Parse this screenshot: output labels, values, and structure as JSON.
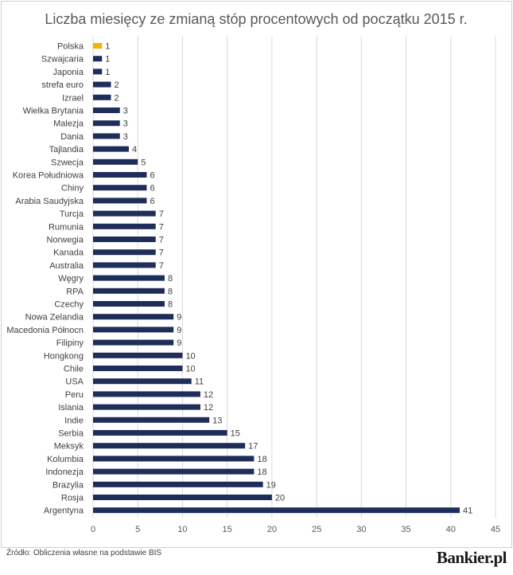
{
  "source_text": "Źródło: Obliczenia własne na podstawie BIS",
  "logo_text": "Bankier.pl",
  "colors": {
    "bar": "#1f2d5a",
    "highlight": "#f2b400",
    "grid": "#d9d9d9",
    "frame": "#d0d0d0"
  },
  "chart_data": {
    "type": "bar",
    "orientation": "horizontal",
    "title": "Liczba miesięcy ze zmianą stóp procentowych od początku 2015 r.",
    "xlabel": "",
    "ylabel": "",
    "xlim": [
      0,
      45
    ],
    "xticks": [
      0,
      5,
      10,
      15,
      20,
      25,
      30,
      35,
      40,
      45
    ],
    "grid": "vertical",
    "highlighted_category": "Polska",
    "categories": [
      "Polska",
      "Szwajcaria",
      "Japonia",
      "strefa euro",
      "Izrael",
      "Wielka Brytania",
      "Malezja",
      "Dania",
      "Tajlandia",
      "Szwecja",
      "Korea Południowa",
      "Chiny",
      "Arabia Saudyjska",
      "Turcja",
      "Rumunia",
      "Norwegia",
      "Kanada",
      "Australia",
      "Węgry",
      "RPA",
      "Czechy",
      "Nowa Zelandia",
      "Macedonia Północn",
      "Filipiny",
      "Hongkong",
      "Chile",
      "USA",
      "Peru",
      "Islania",
      "Indie",
      "Serbia",
      "Meksyk",
      "Kolumbia",
      "Indonezja",
      "Brazylia",
      "Rosja",
      "Argentyna"
    ],
    "values": [
      1,
      1,
      1,
      2,
      2,
      3,
      3,
      3,
      4,
      5,
      6,
      6,
      6,
      7,
      7,
      7,
      7,
      7,
      8,
      8,
      8,
      9,
      9,
      9,
      10,
      10,
      11,
      12,
      12,
      13,
      15,
      17,
      18,
      18,
      19,
      20,
      41
    ]
  }
}
